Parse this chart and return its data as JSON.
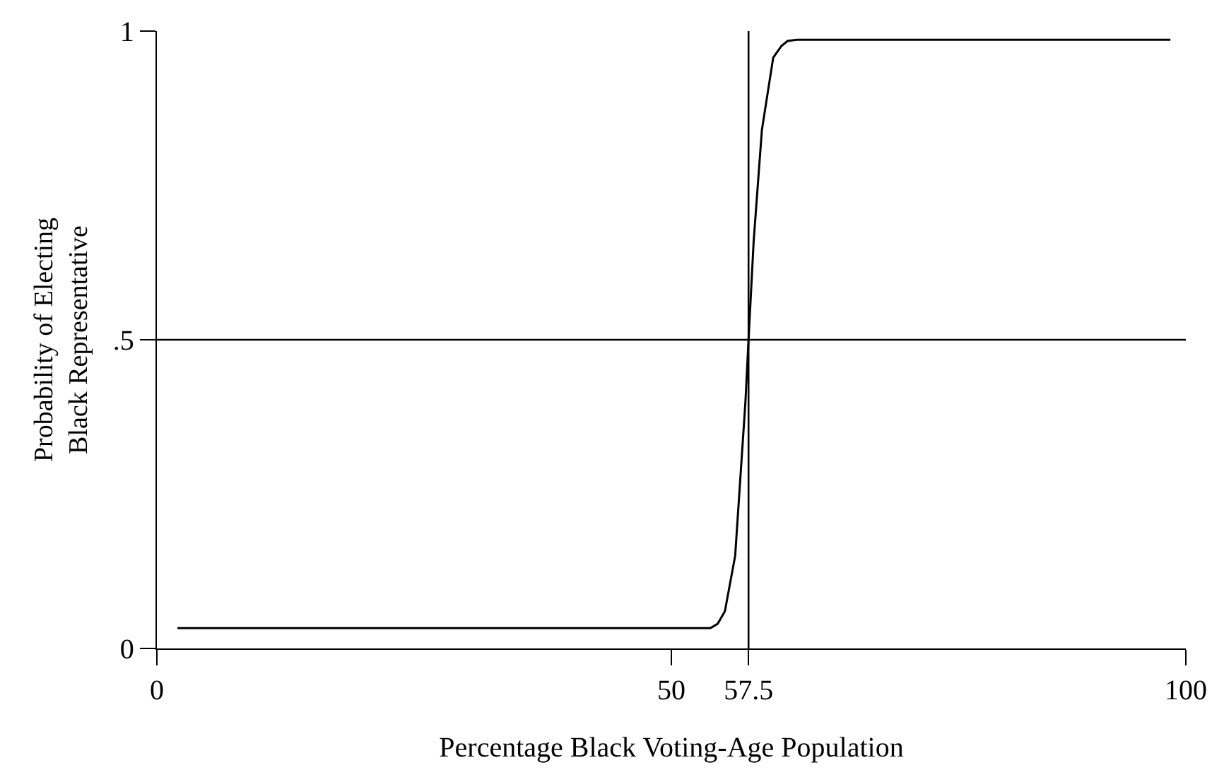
{
  "chart_data": {
    "type": "line",
    "xlabel": "Percentage Black Voting-Age Population",
    "ylabel": "Probability of Electing\nBlack Representative",
    "x": [
      2,
      52,
      53.8,
      54.5,
      55.2,
      56.2,
      57.2,
      57.5,
      58.0,
      58.8,
      59.9,
      60.7,
      61.3,
      62.2,
      98.5
    ],
    "series": [
      {
        "color": "#000000",
        "values": [
          0.033,
          0.033,
          0.033,
          0.04,
          0.06,
          0.15,
          0.4,
          0.5,
          0.66,
          0.84,
          0.957,
          0.976,
          0.984,
          0.986,
          0.986
        ]
      }
    ],
    "xlim": [
      0,
      100
    ],
    "ylim": [
      0,
      1
    ],
    "xticks": [
      0,
      50,
      57.5,
      100
    ],
    "yticks": [
      0,
      {
        "value": 0.5,
        "label": ".5"
      },
      1
    ],
    "ref_lines": [
      {
        "axis": "x",
        "value": 57.5,
        "color": "#000000"
      },
      {
        "axis": "y",
        "value": 0.5,
        "color": "#000000"
      }
    ],
    "line_style": "solid"
  }
}
